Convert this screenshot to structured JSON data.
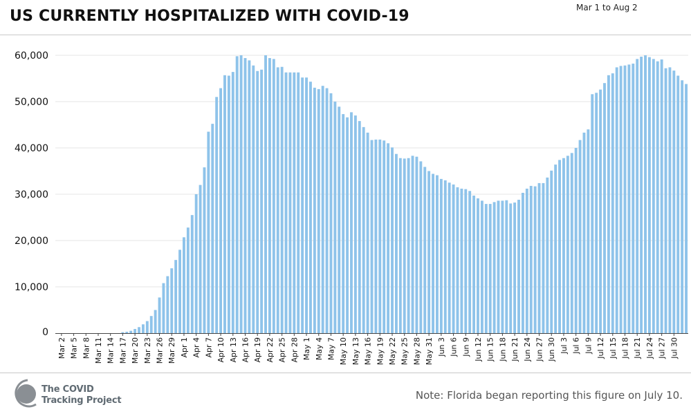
{
  "header": {
    "title": "US CURRENTLY HOSPITALIZED WITH COVID-19",
    "date_range": "Mar 1 to Aug 2"
  },
  "footer": {
    "logo_line1": "The COVID",
    "logo_line2": "Tracking Project",
    "note": "Note: Florida began reporting this figure on July 10."
  },
  "colors": {
    "bar": "#8ec3ea",
    "grid": "#e6e6e6",
    "axis": "#444444",
    "logo_circle": "#8a8f94"
  },
  "chart_data": {
    "type": "bar",
    "title": "US CURRENTLY HOSPITALIZED WITH COVID-19",
    "subtitle": "Mar 1 to Aug 2",
    "xlabel": "",
    "ylabel": "",
    "ylim": [
      0,
      60000
    ],
    "yticks": [
      0,
      10000,
      20000,
      30000,
      40000,
      50000,
      60000
    ],
    "ytick_labels": [
      "0",
      "10,000",
      "20,000",
      "30,000",
      "40,000",
      "50,000",
      "60,000"
    ],
    "grid": true,
    "xtick_labels": [
      "Mar 2",
      "Mar 5",
      "Mar 8",
      "Mar 11",
      "Mar 14",
      "Mar 17",
      "Mar 20",
      "Mar 23",
      "Mar 26",
      "Mar 29",
      "Apr 1",
      "Apr 4",
      "Apr 7",
      "Apr 10",
      "Apr 13",
      "Apr 16",
      "Apr 19",
      "Apr 22",
      "Apr 25",
      "Apr 28",
      "May 1",
      "May 4",
      "May 7",
      "May 10",
      "May 13",
      "May 16",
      "May 19",
      "May 22",
      "May 25",
      "May 28",
      "May 31",
      "Jun 3",
      "Jun 6",
      "Jun 9",
      "Jun 12",
      "Jun 15",
      "Jun 18",
      "Jun 21",
      "Jun 24",
      "Jun 27",
      "Jun 30",
      "Jul 3",
      "Jul 6",
      "Jul 9",
      "Jul 12",
      "Jul 15",
      "Jul 18",
      "Jul 21",
      "Jul 24",
      "Jul 27",
      "Jul 30"
    ],
    "start_date": "Mar 1",
    "end_date": "Aug 2",
    "values": [
      0,
      0,
      0,
      0,
      0,
      0,
      0,
      0,
      0,
      0,
      0,
      0,
      0,
      0,
      0,
      0,
      200,
      300,
      500,
      900,
      1300,
      1900,
      2600,
      3700,
      5000,
      7700,
      10800,
      12300,
      14000,
      15800,
      18000,
      20700,
      22800,
      25500,
      30000,
      32000,
      35800,
      43500,
      45200,
      51000,
      52900,
      55700,
      55600,
      56400,
      59800,
      60000,
      59400,
      58900,
      57800,
      56600,
      56900,
      60000,
      59400,
      59200,
      57400,
      57500,
      56300,
      56300,
      56300,
      56300,
      55200,
      55200,
      54300,
      53000,
      52700,
      53400,
      52900,
      51800,
      50000,
      48900,
      47300,
      46600,
      47700,
      47000,
      45800,
      44500,
      43300,
      41700,
      41800,
      41800,
      41600,
      41000,
      40100,
      38700,
      37800,
      37700,
      37800,
      38300,
      38100,
      37100,
      35900,
      35000,
      34400,
      34100,
      33300,
      33000,
      32500,
      32100,
      31500,
      31200,
      31100,
      30700,
      29700,
      29100,
      28600,
      27900,
      27900,
      28300,
      28600,
      28600,
      28700,
      28000,
      28200,
      28800,
      30300,
      31200,
      31800,
      31700,
      32400,
      32400,
      33600,
      35100,
      36400,
      37400,
      37800,
      38300,
      38900,
      40000,
      41700,
      43300,
      44000,
      51600,
      51900,
      52600,
      54000,
      55700,
      56100,
      57400,
      57700,
      57800,
      58000,
      58200,
      59200,
      59700,
      60000,
      59600,
      59200,
      58700,
      59100,
      57200,
      57400,
      56700,
      55600,
      54600,
      53800
    ]
  }
}
